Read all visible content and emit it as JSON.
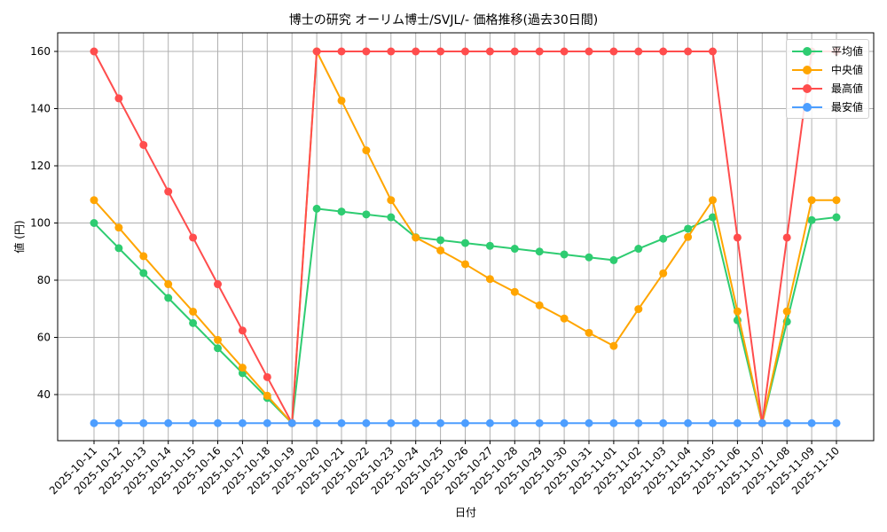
{
  "chart_data": {
    "type": "line",
    "title": "博士の研究 オーリム博士/SVJL/- 価格推移(過去30日間)",
    "xlabel": "日付",
    "ylabel": "値 (円)",
    "ylim": [
      23,
      166
    ],
    "yticks": [
      40,
      60,
      80,
      100,
      120,
      140,
      160
    ],
    "grid": true,
    "legend_position": "upper right",
    "categories": [
      "2025-10-11",
      "2025-10-12",
      "2025-10-13",
      "2025-10-14",
      "2025-10-15",
      "2025-10-16",
      "2025-10-17",
      "2025-10-18",
      "2025-10-19",
      "2025-10-20",
      "2025-10-21",
      "2025-10-22",
      "2025-10-23",
      "2025-10-24",
      "2025-10-25",
      "2025-10-26",
      "2025-10-27",
      "2025-10-28",
      "2025-10-29",
      "2025-10-30",
      "2025-10-31",
      "2025-11-01",
      "2025-11-02",
      "2025-11-03",
      "2025-11-04",
      "2025-11-05",
      "2025-11-06",
      "2025-11-07",
      "2025-11-08",
      "2025-11-09",
      "2025-11-10"
    ],
    "series": [
      {
        "name": "平均値",
        "color": "#2ecc71",
        "values": [
          100,
          91.2,
          82.5,
          73.8,
          65,
          56.2,
          47.5,
          38.8,
          30,
          105,
          104,
          103,
          102,
          95,
          94,
          93,
          92,
          91,
          90,
          89,
          88,
          87,
          91,
          94.5,
          98,
          102,
          66,
          30,
          65.5,
          101,
          102
        ]
      },
      {
        "name": "中央値",
        "color": "#ffa500",
        "values": [
          108,
          98.4,
          88.4,
          78.6,
          69,
          59.1,
          49.4,
          39.6,
          30,
          160,
          142.8,
          125.4,
          108,
          94.9,
          90.4,
          85.6,
          80.4,
          75.9,
          71.2,
          66.6,
          61.6,
          57,
          69.9,
          82.4,
          95.1,
          108,
          69.1,
          30,
          69.1,
          108,
          108
        ]
      },
      {
        "name": "最高値",
        "color": "#ff4d4d",
        "values": [
          160,
          143.6,
          127.3,
          111,
          94.9,
          78.6,
          62.4,
          46.1,
          30,
          160,
          160,
          160,
          160,
          160,
          160,
          160,
          160,
          160,
          160,
          160,
          160,
          160,
          160,
          160,
          160,
          160,
          94.9,
          30,
          94.9,
          160,
          160
        ]
      },
      {
        "name": "最安値",
        "color": "#4d9eff",
        "values": [
          30,
          30,
          30,
          30,
          30,
          30,
          30,
          30,
          30,
          30,
          30,
          30,
          30,
          30,
          30,
          30,
          30,
          30,
          30,
          30,
          30,
          30,
          30,
          30,
          30,
          30,
          30,
          30,
          30,
          30,
          30
        ]
      }
    ]
  },
  "legend": {
    "items": [
      {
        "label": "平均値",
        "color": "#2ecc71"
      },
      {
        "label": "中央値",
        "color": "#ffa500"
      },
      {
        "label": "最高値",
        "color": "#ff4d4d"
      },
      {
        "label": "最安値",
        "color": "#4d9eff"
      }
    ]
  }
}
